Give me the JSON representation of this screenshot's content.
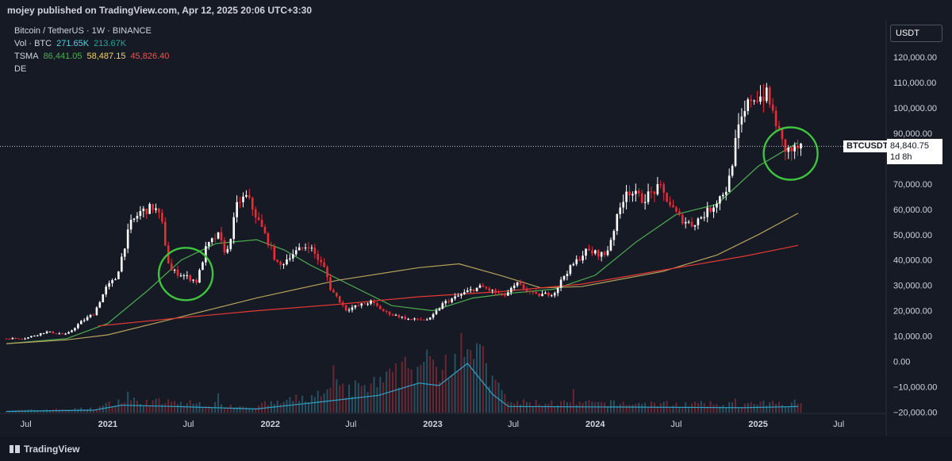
{
  "header": {
    "publisher_text": "mojey published on TradingView.com, Apr 12, 2025 20:06 UTC+3:30"
  },
  "legend": {
    "symbol_line": "Bitcoin / TetherUS · 1W · BINANCE",
    "vol_label": "Vol · BTC",
    "vol_value_1": "271.65K",
    "vol_value_2": "213.67K",
    "ma_label": "TSMA",
    "ma_value_1": "86,441.05",
    "ma_value_2": "58,487.15",
    "ma_value_3": "45,826.40",
    "extra_label": "DE"
  },
  "price_scale": {
    "currency": "USDT",
    "ticks": [
      "120,000.00",
      "110,000.00",
      "100,000.00",
      "90,000.00",
      "70,000.00",
      "60,000.00",
      "50,000.00",
      "40,000.00",
      "30,000.00",
      "20,000.00",
      "10,000.00",
      "0.00",
      "−10,000.00",
      "−20,000.00"
    ]
  },
  "last_price": {
    "symbol": "BTCUSDT",
    "value": "84,840.75",
    "countdown": "1d 8h"
  },
  "time_axis": {
    "labels": [
      "Jul",
      "2021",
      "Jul",
      "2022",
      "Jul",
      "2023",
      "Jul",
      "2024",
      "Jul",
      "2025",
      "Jul"
    ]
  },
  "footer": {
    "brand": "TradingView"
  },
  "colors": {
    "background": "#161a25",
    "up_candle": "#ffffff",
    "down_candle": "#ef2a34",
    "ma_fast": "#4caf50",
    "ma_mid": "#b5a25c",
    "ma_slow": "#e53935",
    "volume_line": "#2ea3c6",
    "annotation_circle": "#3ec43e"
  },
  "chart_data": {
    "type": "candlestick",
    "symbol": "Bitcoin / TetherUS",
    "interval": "1W",
    "exchange": "BINANCE",
    "ylim": [
      -20000,
      123000
    ],
    "x_range": [
      "2020-05-18",
      "2025-09-01"
    ],
    "grid": false,
    "price_series": [
      [
        "2020-05-18",
        9000
      ],
      [
        "2020-07-01",
        9200
      ],
      [
        "2020-08-15",
        11700
      ],
      [
        "2020-10-01",
        10600
      ],
      [
        "2020-11-01",
        15500
      ],
      [
        "2020-12-01",
        19000
      ],
      [
        "2020-12-28",
        29000
      ],
      [
        "2021-01-20",
        33000
      ],
      [
        "2021-02-20",
        54000
      ],
      [
        "2021-03-15",
        59000
      ],
      [
        "2021-04-15",
        61000
      ],
      [
        "2021-05-01",
        56000
      ],
      [
        "2021-05-20",
        36000
      ],
      [
        "2021-06-20",
        34000
      ],
      [
        "2021-07-20",
        31500
      ],
      [
        "2021-08-10",
        45000
      ],
      [
        "2021-09-05",
        50000
      ],
      [
        "2021-09-25",
        42000
      ],
      [
        "2021-10-20",
        63000
      ],
      [
        "2021-11-10",
        65000
      ],
      [
        "2021-12-01",
        57000
      ],
      [
        "2021-12-25",
        48000
      ],
      [
        "2022-01-20",
        37000
      ],
      [
        "2022-02-15",
        42000
      ],
      [
        "2022-03-28",
        46000
      ],
      [
        "2022-05-05",
        36000
      ],
      [
        "2022-05-15",
        29000
      ],
      [
        "2022-06-20",
        20500
      ],
      [
        "2022-08-15",
        23500
      ],
      [
        "2022-09-15",
        19500
      ],
      [
        "2022-11-10",
        16500
      ],
      [
        "2022-12-25",
        16600
      ],
      [
        "2023-01-25",
        23000
      ],
      [
        "2023-03-25",
        28000
      ],
      [
        "2023-04-20",
        29500
      ],
      [
        "2023-06-10",
        25800
      ],
      [
        "2023-07-10",
        30500
      ],
      [
        "2023-08-20",
        26000
      ],
      [
        "2023-10-01",
        27000
      ],
      [
        "2023-10-25",
        34500
      ],
      [
        "2023-12-10",
        43500
      ],
      [
        "2024-01-25",
        42000
      ],
      [
        "2024-03-10",
        68000
      ],
      [
        "2024-04-15",
        64000
      ],
      [
        "2024-05-25",
        68500
      ],
      [
        "2024-07-05",
        57000
      ],
      [
        "2024-08-05",
        54000
      ],
      [
        "2024-09-15",
        60000
      ],
      [
        "2024-10-25",
        69000
      ],
      [
        "2024-11-15",
        90000
      ],
      [
        "2024-12-15",
        104000
      ],
      [
        "2025-01-20",
        105000
      ],
      [
        "2025-02-05",
        97000
      ],
      [
        "2025-02-28",
        84000
      ],
      [
        "2025-03-15",
        83000
      ],
      [
        "2025-04-12",
        84840.75
      ]
    ],
    "moving_averages": [
      {
        "name": "86,441.05",
        "points": [
          [
            "2020-05-18",
            7000
          ],
          [
            "2020-10-01",
            9000
          ],
          [
            "2021-01-01",
            15000
          ],
          [
            "2021-04-01",
            28000
          ],
          [
            "2021-06-15",
            40000
          ],
          [
            "2021-09-01",
            46500
          ],
          [
            "2021-12-01",
            48000
          ],
          [
            "2022-02-01",
            44000
          ],
          [
            "2022-04-01",
            38000
          ],
          [
            "2022-07-01",
            30000
          ],
          [
            "2022-10-01",
            22000
          ],
          [
            "2023-01-01",
            20000
          ],
          [
            "2023-04-01",
            25000
          ],
          [
            "2023-07-01",
            27000
          ],
          [
            "2023-10-01",
            28500
          ],
          [
            "2024-01-01",
            34000
          ],
          [
            "2024-04-01",
            47000
          ],
          [
            "2024-07-01",
            58000
          ],
          [
            "2024-10-01",
            62000
          ],
          [
            "2025-01-01",
            77000
          ],
          [
            "2025-04-01",
            86400
          ]
        ]
      },
      {
        "name": "58,487.15",
        "points": [
          [
            "2020-05-18",
            7000
          ],
          [
            "2020-10-01",
            8500
          ],
          [
            "2021-01-01",
            10500
          ],
          [
            "2021-06-01",
            17000
          ],
          [
            "2021-12-01",
            25000
          ],
          [
            "2022-06-01",
            32000
          ],
          [
            "2022-12-01",
            37000
          ],
          [
            "2023-03-01",
            38500
          ],
          [
            "2023-06-01",
            34000
          ],
          [
            "2023-09-01",
            29000
          ],
          [
            "2023-12-01",
            29500
          ],
          [
            "2024-06-01",
            35500
          ],
          [
            "2024-10-01",
            42000
          ],
          [
            "2025-01-01",
            50000
          ],
          [
            "2025-04-01",
            58500
          ]
        ]
      },
      {
        "name": "45,826.40",
        "points": [
          [
            "2020-12-10",
            14000
          ],
          [
            "2021-06-01",
            17000
          ],
          [
            "2021-12-01",
            20000
          ],
          [
            "2022-06-01",
            22500
          ],
          [
            "2022-12-01",
            25500
          ],
          [
            "2023-06-01",
            27500
          ],
          [
            "2023-12-01",
            30500
          ],
          [
            "2024-06-01",
            36000
          ],
          [
            "2024-12-01",
            41500
          ],
          [
            "2025-04-01",
            45800
          ]
        ]
      }
    ],
    "volume_series": [
      [
        "2020-05-18",
        1
      ],
      [
        "2020-12-01",
        2
      ],
      [
        "2021-02-01",
        6
      ],
      [
        "2021-06-01",
        5
      ],
      [
        "2021-12-01",
        3
      ],
      [
        "2022-05-01",
        9
      ],
      [
        "2022-09-01",
        14
      ],
      [
        "2022-12-01",
        24
      ],
      [
        "2023-01-15",
        22
      ],
      [
        "2023-03-20",
        40
      ],
      [
        "2023-05-15",
        15
      ],
      [
        "2023-06-20",
        5
      ],
      [
        "2024-12-01",
        4
      ],
      [
        "2025-04-01",
        5
      ]
    ],
    "volume_markers": [
      "271.65K",
      "213.67K"
    ],
    "annotations": [
      {
        "type": "circle",
        "center_date": "2021-06-25",
        "center_price": 34500
      },
      {
        "type": "circle",
        "center_date": "2025-03-15",
        "center_price": 82000
      }
    ]
  }
}
